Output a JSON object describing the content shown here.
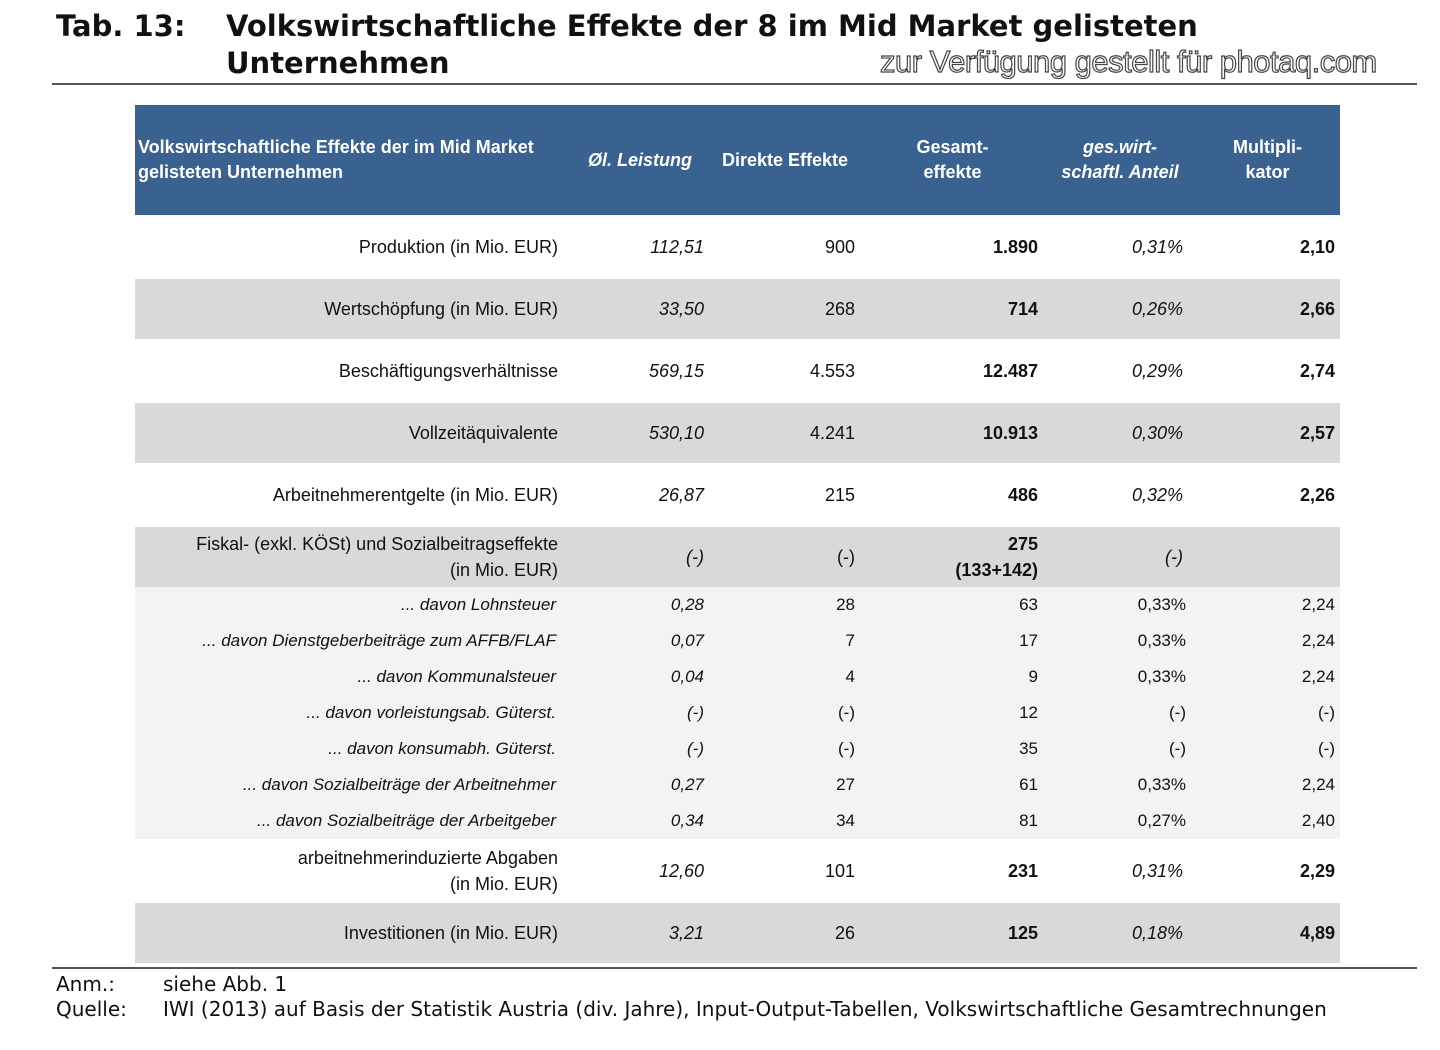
{
  "title": {
    "label": "Tab. 13:",
    "text": "Volkswirtschaftliche Effekte der 8 im Mid Market gelisteten Unternehmen"
  },
  "table": {
    "headers": [
      "Volkswirtschaftliche Effekte der im Mid Market gelisteten Unternehmen",
      "Øl. Leistung",
      "Direkte Effekte",
      "Gesamt-\neffekte",
      "ges.wirt-\nschaftl. Anteil",
      "Multipli-\nkator"
    ],
    "rows": [
      {
        "type": "white",
        "cells": [
          "Produktion (in Mio. EUR)",
          "112,51",
          "900",
          "1.890",
          "0,31%",
          "2,10"
        ]
      },
      {
        "type": "gray",
        "cells": [
          "Wertschöpfung (in Mio. EUR)",
          "33,50",
          "268",
          "714",
          "0,26%",
          "2,66"
        ]
      },
      {
        "type": "white",
        "cells": [
          "Beschäftigungsverhältnisse",
          "569,15",
          "4.553",
          "12.487",
          "0,29%",
          "2,74"
        ]
      },
      {
        "type": "gray",
        "cells": [
          "Vollzeitäquivalente",
          "530,10",
          "4.241",
          "10.913",
          "0,30%",
          "2,57"
        ]
      },
      {
        "type": "white",
        "cells": [
          "Arbeitnehmerentgelte (in Mio. EUR)",
          "26,87",
          "215",
          "486",
          "0,32%",
          "2,26"
        ]
      },
      {
        "type": "gray",
        "cells": [
          "Fiskal- (exkl. KÖSt) und Sozialbeitragseffekte\n(in Mio. EUR)",
          "(-)",
          "(-)",
          "275\n(133+142)",
          "(-)",
          ""
        ]
      },
      {
        "type": "sub",
        "cells": [
          "... davon Lohnsteuer",
          "0,28",
          "28",
          "63",
          "0,33%",
          "2,24"
        ]
      },
      {
        "type": "sub",
        "cells": [
          "... davon Dienstgeberbeiträge zum AFFB/FLAF",
          "0,07",
          "7",
          "17",
          "0,33%",
          "2,24"
        ]
      },
      {
        "type": "sub",
        "cells": [
          "... davon Kommunalsteuer",
          "0,04",
          "4",
          "9",
          "0,33%",
          "2,24"
        ]
      },
      {
        "type": "sub",
        "cells": [
          "... davon vorleistungsab. Güterst.",
          "(-)",
          "(-)",
          "12",
          "(-)",
          "(-)"
        ]
      },
      {
        "type": "sub",
        "cells": [
          "... davon konsumabh. Güterst.",
          "(-)",
          "(-)",
          "35",
          "(-)",
          "(-)"
        ]
      },
      {
        "type": "sub",
        "cells": [
          "... davon Sozialbeiträge der Arbeitnehmer",
          "0,27",
          "27",
          "61",
          "0,33%",
          "2,24"
        ]
      },
      {
        "type": "sub",
        "cells": [
          "... davon Sozialbeiträge der Arbeitgeber",
          "0,34",
          "34",
          "81",
          "0,27%",
          "2,40"
        ]
      },
      {
        "type": "white",
        "cells": [
          "arbeitnehmerinduzierte Abgaben\n(in Mio. EUR)",
          "12,60",
          "101",
          "231",
          "0,31%",
          "2,29"
        ]
      },
      {
        "type": "gray",
        "cells": [
          "Investitionen (in Mio. EUR)",
          "3,21",
          "26",
          "125",
          "0,18%",
          "4,89"
        ]
      }
    ]
  },
  "notes": [
    {
      "key": "Anm.:",
      "value": "siehe Abb. 1"
    },
    {
      "key": "Quelle:",
      "value": "IWI (2013) auf Basis der Statistik Austria (div. Jahre), Input-Output-Tabellen, Volkswirtschaftliche Gesamtrechnungen"
    }
  ],
  "watermark": "zur Verfügung gestellt für photaq.com",
  "colors": {
    "header_bg": "#3a6290",
    "gray_row": "#d9d9d9",
    "sub_row": "#f3f3f3"
  }
}
